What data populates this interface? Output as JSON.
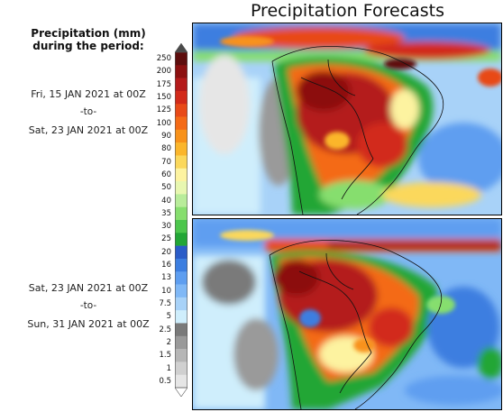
{
  "title": "Precipitation Forecasts",
  "legend": {
    "title_line1": "Precipitation (mm)",
    "title_line2": "during the period:",
    "levels": [
      "250",
      "200",
      "175",
      "150",
      "125",
      "100",
      "90",
      "80",
      "70",
      "60",
      "50",
      "40",
      "35",
      "30",
      "25",
      "20",
      "16",
      "13",
      "10",
      "7.5",
      "5",
      "2.5",
      "2",
      "1.5",
      "1",
      "0.5"
    ],
    "colors": [
      "#5e0d0d",
      "#8c1010",
      "#b41a1a",
      "#d22a1a",
      "#e84a18",
      "#f46a16",
      "#f8921a",
      "#fbb62c",
      "#fbd85c",
      "#fdf3a0",
      "#e8f7b0",
      "#b8ec9a",
      "#86de6e",
      "#4cc64c",
      "#22a636",
      "#2a5cc8",
      "#3c7ee0",
      "#5e9ef0",
      "#80b8f6",
      "#a8d2f8",
      "#cfeefc",
      "#7a7a7a",
      "#9a9a9a",
      "#b6b6b6",
      "#d0d0d0",
      "#e6e6e6"
    ],
    "top_color": "#4a4a4a"
  },
  "periods": [
    {
      "start": "Fri, 15 JAN 2021 at 00Z",
      "to": "-to-",
      "end": "Sat, 23 JAN 2021 at 00Z"
    },
    {
      "start": "Sat, 23 JAN 2021 at 00Z",
      "to": "-to-",
      "end": "Sun, 31 JAN 2021 at 00Z"
    }
  ]
}
